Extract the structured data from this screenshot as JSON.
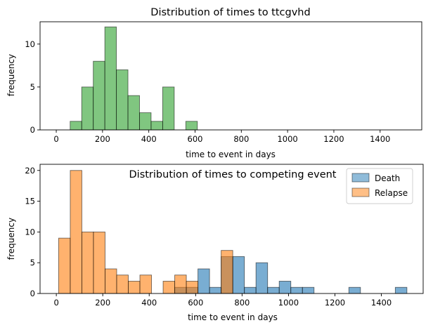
{
  "chart_data": [
    {
      "type": "bar",
      "title": "Distribution of times to ttcgvhd",
      "xlabel": "time to event in days",
      "ylabel": "frequency",
      "xlim": [
        -70,
        1580
      ],
      "ylim": [
        0,
        12.6
      ],
      "xticks": [
        0,
        200,
        400,
        600,
        800,
        1000,
        1200,
        1400
      ],
      "yticks": [
        0,
        5,
        10
      ],
      "bin_width": 50,
      "grid": false,
      "series": [
        {
          "color": "#2ca02c",
          "bins": [
            {
              "x0": 60,
              "count": 1
            },
            {
              "x0": 110,
              "count": 5
            },
            {
              "x0": 160,
              "count": 8
            },
            {
              "x0": 210,
              "count": 12
            },
            {
              "x0": 260,
              "count": 7
            },
            {
              "x0": 310,
              "count": 4
            },
            {
              "x0": 360,
              "count": 2
            },
            {
              "x0": 410,
              "count": 1
            },
            {
              "x0": 460,
              "count": 5
            },
            {
              "x0": 560,
              "count": 1
            }
          ]
        }
      ]
    },
    {
      "type": "bar",
      "title": "Distribution of times to competing event",
      "xlabel": "time to event in days",
      "ylabel": "frequency",
      "xlim": [
        -70,
        1580
      ],
      "ylim": [
        0,
        21
      ],
      "xticks": [
        0,
        200,
        400,
        600,
        800,
        1000,
        1200,
        1400
      ],
      "yticks": [
        0,
        5,
        10,
        15,
        20
      ],
      "bin_width": 50,
      "grid": false,
      "legend_position": "top-right",
      "series": [
        {
          "name": "Death",
          "color": "#1f77b4",
          "bins": [
            {
              "x0": 510,
              "count": 1
            },
            {
              "x0": 560,
              "count": 1
            },
            {
              "x0": 610,
              "count": 4
            },
            {
              "x0": 660,
              "count": 1
            },
            {
              "x0": 710,
              "count": 6
            },
            {
              "x0": 760,
              "count": 6
            },
            {
              "x0": 810,
              "count": 1
            },
            {
              "x0": 860,
              "count": 5
            },
            {
              "x0": 910,
              "count": 1
            },
            {
              "x0": 960,
              "count": 2
            },
            {
              "x0": 1010,
              "count": 1
            },
            {
              "x0": 1060,
              "count": 1
            },
            {
              "x0": 1260,
              "count": 1
            },
            {
              "x0": 1460,
              "count": 1
            }
          ]
        },
        {
          "name": "Relapse",
          "color": "#ff7f0e",
          "bins": [
            {
              "x0": 10,
              "count": 9
            },
            {
              "x0": 60,
              "count": 20
            },
            {
              "x0": 110,
              "count": 10
            },
            {
              "x0": 160,
              "count": 10
            },
            {
              "x0": 210,
              "count": 4
            },
            {
              "x0": 260,
              "count": 3
            },
            {
              "x0": 310,
              "count": 2
            },
            {
              "x0": 360,
              "count": 3
            },
            {
              "x0": 460,
              "count": 2
            },
            {
              "x0": 510,
              "count": 3
            },
            {
              "x0": 560,
              "count": 2
            },
            {
              "x0": 710,
              "count": 7
            }
          ]
        }
      ]
    }
  ]
}
